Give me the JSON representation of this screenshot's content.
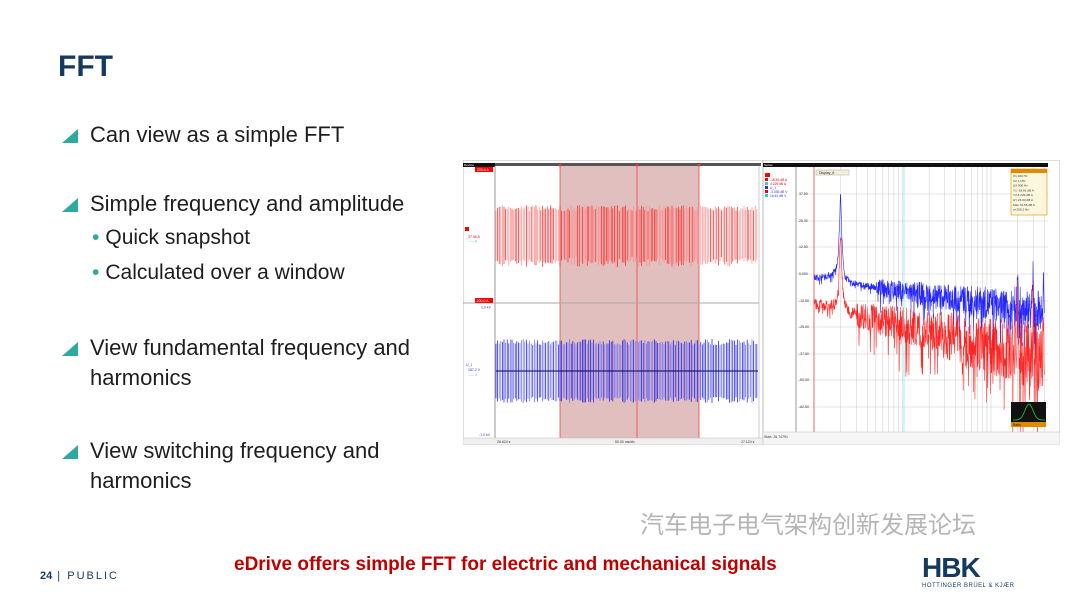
{
  "slide": {
    "title": "FFT",
    "bullets": [
      {
        "text": "Can view as a simple FFT"
      },
      {
        "text": "Simple frequency and amplitude",
        "sub": [
          "Quick snapshot",
          "Calculated over a window"
        ]
      },
      {
        "text_lines": [
          "View fundamental frequency and",
          "harmonics"
        ]
      },
      {
        "text_lines": [
          "View switching frequency  and",
          "harmonics"
        ]
      }
    ],
    "sub_bullet_glyph": "•",
    "page_number": "24",
    "classification": "PUBLIC",
    "tagline": "eDrive offers simple FFT for electric and mechanical signals",
    "logo": {
      "text": "HBK",
      "subtext": "HOTTINGER BRÜEL & KJÆR"
    },
    "watermark": "汽车电子电气架构创新发展论坛",
    "colors": {
      "title": "#163a5f",
      "accent": "#2fa8a2",
      "tagline": "#c00000",
      "current": "#ff0000",
      "voltage": "#0000ff"
    }
  },
  "time_view": {
    "header": "Review",
    "current_top": "200.0 A",
    "current_value": "37.06 A",
    "current_unit_row": "----- A",
    "current_bottom": "-200.0 A",
    "voltage_top": "1.0 kV",
    "voltage_name": "U_1",
    "voltage_value": "187.2 V",
    "voltage_unit_row": "----- V",
    "voltage_bottom": "-1.0 kV",
    "time_start": "26.624 s",
    "time_div": "50.00 ms/div",
    "time_end": "27.124 s"
  },
  "fft_view": {
    "header": "Series",
    "display_label": "Display_6",
    "legend": [
      "-18.81 dB A",
      "4.229 dB A",
      "U_1",
      "-3.036 dB V",
      "16.61 dB V"
    ],
    "y_ticks": [
      "37.50",
      "25.00",
      "12.50",
      "0.000",
      "-12.50",
      "-25.00",
      "-37.50",
      "-50.00",
      "-62.50"
    ],
    "x_ticks": [
      "100.0 Hz",
      "200 Hz",
      "300 Hz",
      "500 Hz",
      "700 Hz",
      "1 kHz",
      "2 kHz",
      "3 kHz",
      "4 kHz",
      "6 kHz",
      "10 kHz",
      "20 kHz",
      "40.00 kHz"
    ],
    "start": "Start: 26.74791",
    "cursor_box": [
      "X1  100 Hz",
      "X2  1 kHz",
      "ΔX  900 Hz",
      "Y1  -18.81 dB A",
      "Y2  4.229 dB A",
      "ΔY  23.03 dB A",
      "Max  31.55 dB A",
      "at  200.2 Hz"
    ],
    "window_label": "Ratio"
  }
}
